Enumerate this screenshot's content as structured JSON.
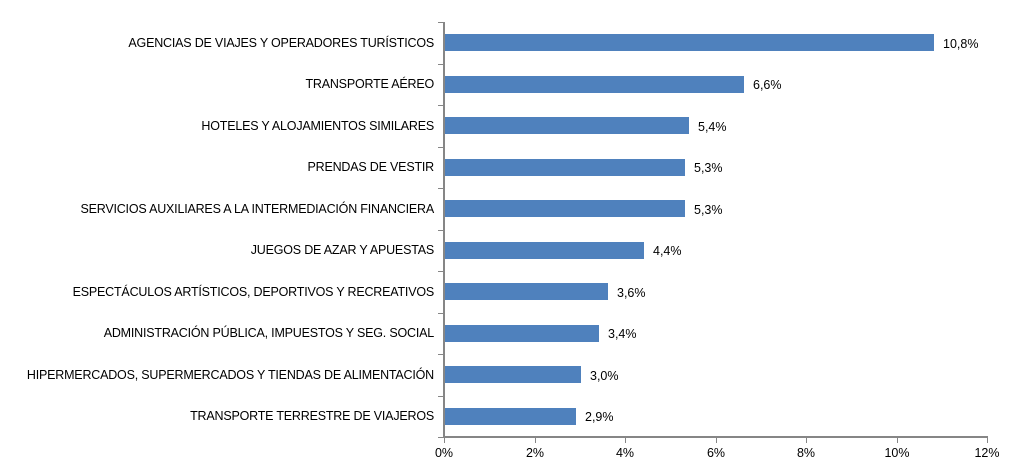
{
  "chart_data": {
    "type": "bar",
    "orientation": "horizontal",
    "title": "",
    "xlabel": "",
    "ylabel": "",
    "categories": [
      "AGENCIAS DE VIAJES Y OPERADORES TURÍSTICOS",
      "TRANSPORTE AÉREO",
      "HOTELES  Y ALOJAMIENTOS SIMILARES",
      "PRENDAS DE VESTIR",
      "SERVICIOS AUXILIARES A LA INTERMEDIACIÓN FINANCIERA",
      "JUEGOS DE AZAR Y APUESTAS",
      "ESPECTÁCULOS ARTÍSTICOS, DEPORTIVOS Y RECREATIVOS",
      "ADMINISTRACIÓN PÚBLICA, IMPUESTOS Y SEG. SOCIAL",
      "HIPERMERCADOS, SUPERMERCADOS Y TIENDAS DE ALIMENTACIÓN",
      "TRANSPORTE TERRESTRE DE VIAJEROS"
    ],
    "values": [
      10.8,
      6.6,
      5.4,
      5.3,
      5.3,
      4.4,
      3.6,
      3.4,
      3.0,
      2.9
    ],
    "value_labels": [
      "10,8%",
      "6,6%",
      "5,4%",
      "5,3%",
      "5,3%",
      "4,4%",
      "3,6%",
      "3,4%",
      "3,0%",
      "2,9%"
    ],
    "xlim": [
      0,
      12
    ],
    "xticks": [
      0,
      2,
      4,
      6,
      8,
      10,
      12
    ],
    "xtick_labels": [
      "0%",
      "2%",
      "4%",
      "6%",
      "8%",
      "10%",
      "12%"
    ],
    "grid": false,
    "legend": null,
    "bar_color": "#4F81BD",
    "axis_color": "#868686"
  }
}
